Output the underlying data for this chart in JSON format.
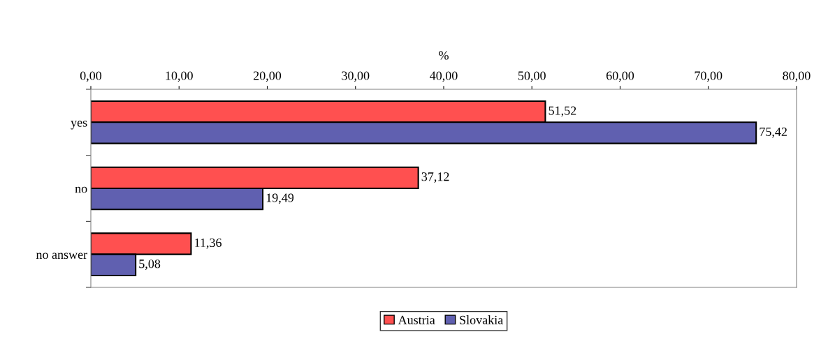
{
  "chart_data": {
    "type": "bar",
    "orientation": "horizontal",
    "xlabel": "%",
    "categories": [
      "yes",
      "no",
      "no answer"
    ],
    "series": [
      {
        "name": "Austria",
        "color": "#ff5050",
        "values": [
          51.52,
          37.12,
          11.36
        ],
        "value_labels": [
          "51,52",
          "37,12",
          "11,36"
        ]
      },
      {
        "name": "Slovakia",
        "color": "#6060b0",
        "values": [
          75.42,
          19.49,
          5.08
        ],
        "value_labels": [
          "75,42",
          "19,49",
          "5,08"
        ]
      }
    ],
    "xlim": [
      0,
      80
    ],
    "xticks": [
      {
        "value": 0,
        "label": "0,00"
      },
      {
        "value": 10,
        "label": "10,00"
      },
      {
        "value": 20,
        "label": "20,00"
      },
      {
        "value": 30,
        "label": "30,00"
      },
      {
        "value": 40,
        "label": "40,00"
      },
      {
        "value": 50,
        "label": "50,00"
      },
      {
        "value": 60,
        "label": "60,00"
      },
      {
        "value": 70,
        "label": "70,00"
      },
      {
        "value": 80,
        "label": "80,00"
      }
    ],
    "grid": false,
    "legend": "bottom"
  }
}
